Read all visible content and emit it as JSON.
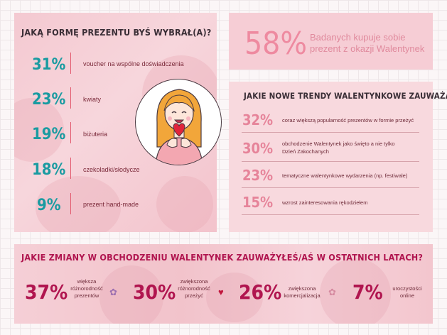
{
  "left": {
    "title": "JAKĄ FORMĘ PREZENTU BYŚ WYBRAŁ(A)?",
    "items": [
      {
        "pct": "31%",
        "label": "voucher na wspólne doświadczenia"
      },
      {
        "pct": "23%",
        "label": "kwiaty"
      },
      {
        "pct": "19%",
        "label": "biżuteria"
      },
      {
        "pct": "18%",
        "label": "czekoladki/słodycze"
      },
      {
        "pct": "9%",
        "label": "prezent hand-made"
      }
    ]
  },
  "stat": {
    "pct": "58%",
    "text": "Badanych kupuje sobie prezent z okazji Walentynek"
  },
  "trends": {
    "title": "JAKIE NOWE TRENDY WALENTYNKOWE ZAUWAŻASZ?",
    "items": [
      {
        "pct": "32%",
        "label": "coraz większą popularność prezentów w formie przeżyć"
      },
      {
        "pct": "30%",
        "label": "obchodzenie Walentynek jako święto a nie tylko Dzień Zakochanych"
      },
      {
        "pct": "23%",
        "label": "tematyczne walentynkowe wydarzenia (np. festiwale)"
      },
      {
        "pct": "15%",
        "label": "wzrost zainteresowania rękodziełem"
      }
    ]
  },
  "changes": {
    "title": "JAKIE ZMIANY W OBCHODZENIU WALENTYNEK ZAUWAŻYŁEŚ/AŚ W OSTATNICH LATACH?",
    "items": [
      {
        "pct": "37%",
        "label": "większa różnorodność prezentów",
        "icon": "flower-icon"
      },
      {
        "pct": "30%",
        "label": "zwiększona różnorodność przeżyć",
        "icon": "heart-icon"
      },
      {
        "pct": "26%",
        "label": "zwiększona komercjalizacja",
        "icon": "flower-icon"
      },
      {
        "pct": "7%",
        "label": "uroczystości online",
        "icon": "none"
      }
    ]
  },
  "colors": {
    "teal": "#1a9ba1",
    "rose": "#e6849a",
    "crimson": "#b0154f",
    "panel_pink": "#f6cdd5"
  }
}
